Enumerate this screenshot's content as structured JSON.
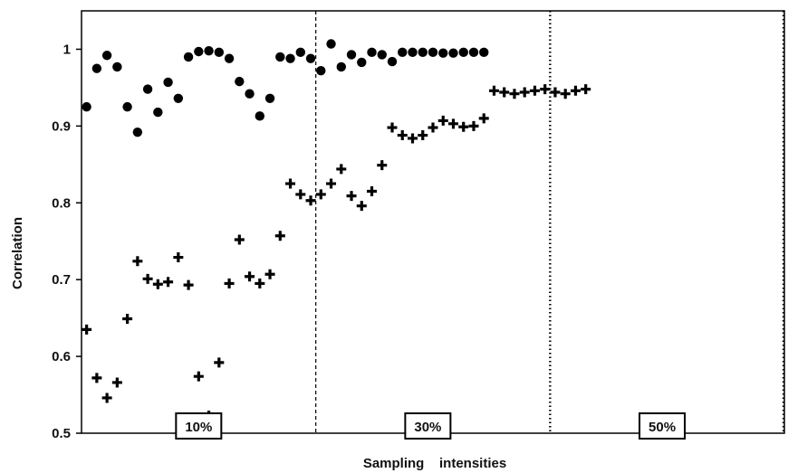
{
  "chart_data": {
    "type": "scatter",
    "title": "",
    "xlabel": "Sampling    intensities",
    "ylabel": "Correlation",
    "ylim": [
      0.5,
      1.05
    ],
    "yticks": [
      "0.5",
      "0.6",
      "0.7",
      "0.8",
      "0.9",
      "1"
    ],
    "grid": false,
    "groups": [
      {
        "label": "10%",
        "range": [
          1,
          23
        ]
      },
      {
        "label": "30%",
        "range": [
          23,
          46
        ]
      },
      {
        "label": "50%",
        "range": [
          46,
          69
        ]
      }
    ],
    "series": [
      {
        "marker": "circle",
        "points": [
          [
            1,
            0.925
          ],
          [
            2,
            0.975
          ],
          [
            3,
            0.992
          ],
          [
            4,
            0.977
          ],
          [
            5,
            0.925
          ],
          [
            6,
            0.892
          ],
          [
            7,
            0.948
          ],
          [
            8,
            0.918
          ],
          [
            9,
            0.957
          ],
          [
            10,
            0.936
          ],
          [
            11,
            0.99
          ],
          [
            12,
            0.997
          ],
          [
            13,
            0.998
          ],
          [
            14,
            0.996
          ],
          [
            15,
            0.988
          ],
          [
            16,
            0.958
          ],
          [
            17,
            0.942
          ],
          [
            18,
            0.913
          ],
          [
            19,
            0.936
          ],
          [
            20,
            0.99
          ],
          [
            21,
            0.988
          ],
          [
            22,
            0.996
          ],
          [
            23,
            0.988
          ],
          [
            24,
            0.972
          ],
          [
            25,
            1.007
          ],
          [
            26,
            0.977
          ],
          [
            27,
            0.993
          ],
          [
            28,
            0.983
          ],
          [
            29,
            0.996
          ],
          [
            30,
            0.993
          ],
          [
            31,
            0.984
          ],
          [
            32,
            0.996
          ],
          [
            33,
            0.996
          ],
          [
            34,
            0.996
          ],
          [
            35,
            0.996
          ],
          [
            36,
            0.995
          ],
          [
            37,
            0.995
          ],
          [
            38,
            0.996
          ],
          [
            39,
            0.996
          ],
          [
            40,
            0.996
          ]
        ]
      },
      {
        "marker": "plus",
        "points": [
          [
            1,
            0.635
          ],
          [
            2,
            0.572
          ],
          [
            3,
            0.546
          ],
          [
            4,
            0.566
          ],
          [
            5,
            0.649
          ],
          [
            6,
            0.724
          ],
          [
            7,
            0.701
          ],
          [
            8,
            0.694
          ],
          [
            9,
            0.697
          ],
          [
            10,
            0.729
          ],
          [
            11,
            0.693
          ],
          [
            12,
            0.574
          ],
          [
            13,
            0.523
          ],
          [
            14,
            0.592
          ],
          [
            15,
            0.695
          ],
          [
            16,
            0.752
          ],
          [
            17,
            0.704
          ],
          [
            18,
            0.695
          ],
          [
            19,
            0.707
          ],
          [
            20,
            0.757
          ],
          [
            21,
            0.825
          ],
          [
            22,
            0.811
          ],
          [
            23,
            0.803
          ],
          [
            24,
            0.811
          ],
          [
            25,
            0.825
          ],
          [
            26,
            0.844
          ],
          [
            27,
            0.809
          ],
          [
            28,
            0.796
          ],
          [
            29,
            0.815
          ],
          [
            30,
            0.849
          ],
          [
            31,
            0.898
          ],
          [
            32,
            0.888
          ],
          [
            33,
            0.884
          ],
          [
            34,
            0.888
          ],
          [
            35,
            0.898
          ],
          [
            36,
            0.907
          ],
          [
            37,
            0.903
          ],
          [
            38,
            0.899
          ],
          [
            39,
            0.9
          ],
          [
            40,
            0.91
          ],
          [
            41,
            0.946
          ],
          [
            42,
            0.944
          ],
          [
            43,
            0.942
          ],
          [
            44,
            0.944
          ],
          [
            45,
            0.946
          ],
          [
            46,
            0.948
          ],
          [
            47,
            0.944
          ],
          [
            48,
            0.942
          ],
          [
            49,
            0.946
          ],
          [
            50,
            0.948
          ]
        ]
      }
    ]
  }
}
